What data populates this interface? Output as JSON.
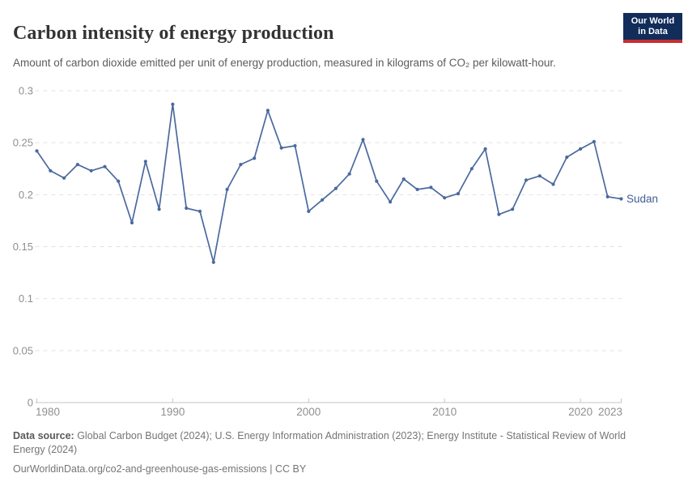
{
  "header": {
    "title": "Carbon intensity of energy production",
    "subtitle": "Amount of carbon dioxide emitted per unit of energy production, measured in kilograms of CO₂ per kilowatt-hour.",
    "logo": {
      "line1": "Our World",
      "line2": "in Data",
      "bg_color": "#122d5a",
      "accent_color": "#c82d32"
    }
  },
  "chart_data": {
    "type": "line",
    "title": "Carbon intensity of energy production",
    "unit": "kilograms of CO₂ per kilowatt-hour",
    "xlim": [
      1980,
      2023
    ],
    "ylim": [
      0,
      0.3
    ],
    "grid": "horizontal-dashed",
    "legend_position": "end-of-line-label",
    "x_ticks": [
      1980,
      1990,
      2000,
      2010,
      2020,
      2023
    ],
    "x_tick_labels": [
      "1980",
      "1990",
      "2000",
      "2010",
      "2020",
      "2023"
    ],
    "y_ticks": [
      0,
      0.05,
      0.1,
      0.15,
      0.2,
      0.25,
      0.3
    ],
    "y_tick_labels": [
      "0",
      "0.05",
      "0.1",
      "0.15",
      "0.2",
      "0.25",
      "0.3"
    ],
    "series": [
      {
        "name": "Sudan",
        "color": "#4a699e",
        "label_color": "#3f5e96",
        "x": [
          1980,
          1981,
          1982,
          1983,
          1984,
          1985,
          1986,
          1987,
          1988,
          1989,
          1990,
          1991,
          1992,
          1993,
          1994,
          1995,
          1996,
          1997,
          1998,
          1999,
          2000,
          2001,
          2002,
          2003,
          2004,
          2005,
          2006,
          2007,
          2008,
          2009,
          2010,
          2011,
          2012,
          2013,
          2014,
          2015,
          2016,
          2017,
          2018,
          2019,
          2020,
          2021,
          2022,
          2023
        ],
        "values": [
          0.242,
          0.223,
          0.216,
          0.229,
          0.223,
          0.227,
          0.213,
          0.173,
          0.232,
          0.186,
          0.287,
          0.187,
          0.184,
          0.135,
          0.205,
          0.229,
          0.235,
          0.281,
          0.245,
          0.247,
          0.184,
          0.195,
          0.206,
          0.22,
          0.253,
          0.213,
          0.193,
          0.215,
          0.205,
          0.207,
          0.197,
          0.201,
          0.225,
          0.244,
          0.181,
          0.186,
          0.214,
          0.218,
          0.21,
          0.236,
          0.244,
          0.251,
          0.198,
          0.196
        ]
      }
    ],
    "colors": {
      "gridline": "#e2e2e2",
      "axis_line": "#c6c6c6",
      "tick_label": "#8f8f8f"
    }
  },
  "footer": {
    "datasource_label": "Data source:",
    "datasource_text": " Global Carbon Budget (2024); U.S. Energy Information Administration (2023); Energy Institute - Statistical Review of World Energy (2024)",
    "url": "OurWorldinData.org/co2-and-greenhouse-gas-emissions",
    "license": " | CC BY"
  }
}
